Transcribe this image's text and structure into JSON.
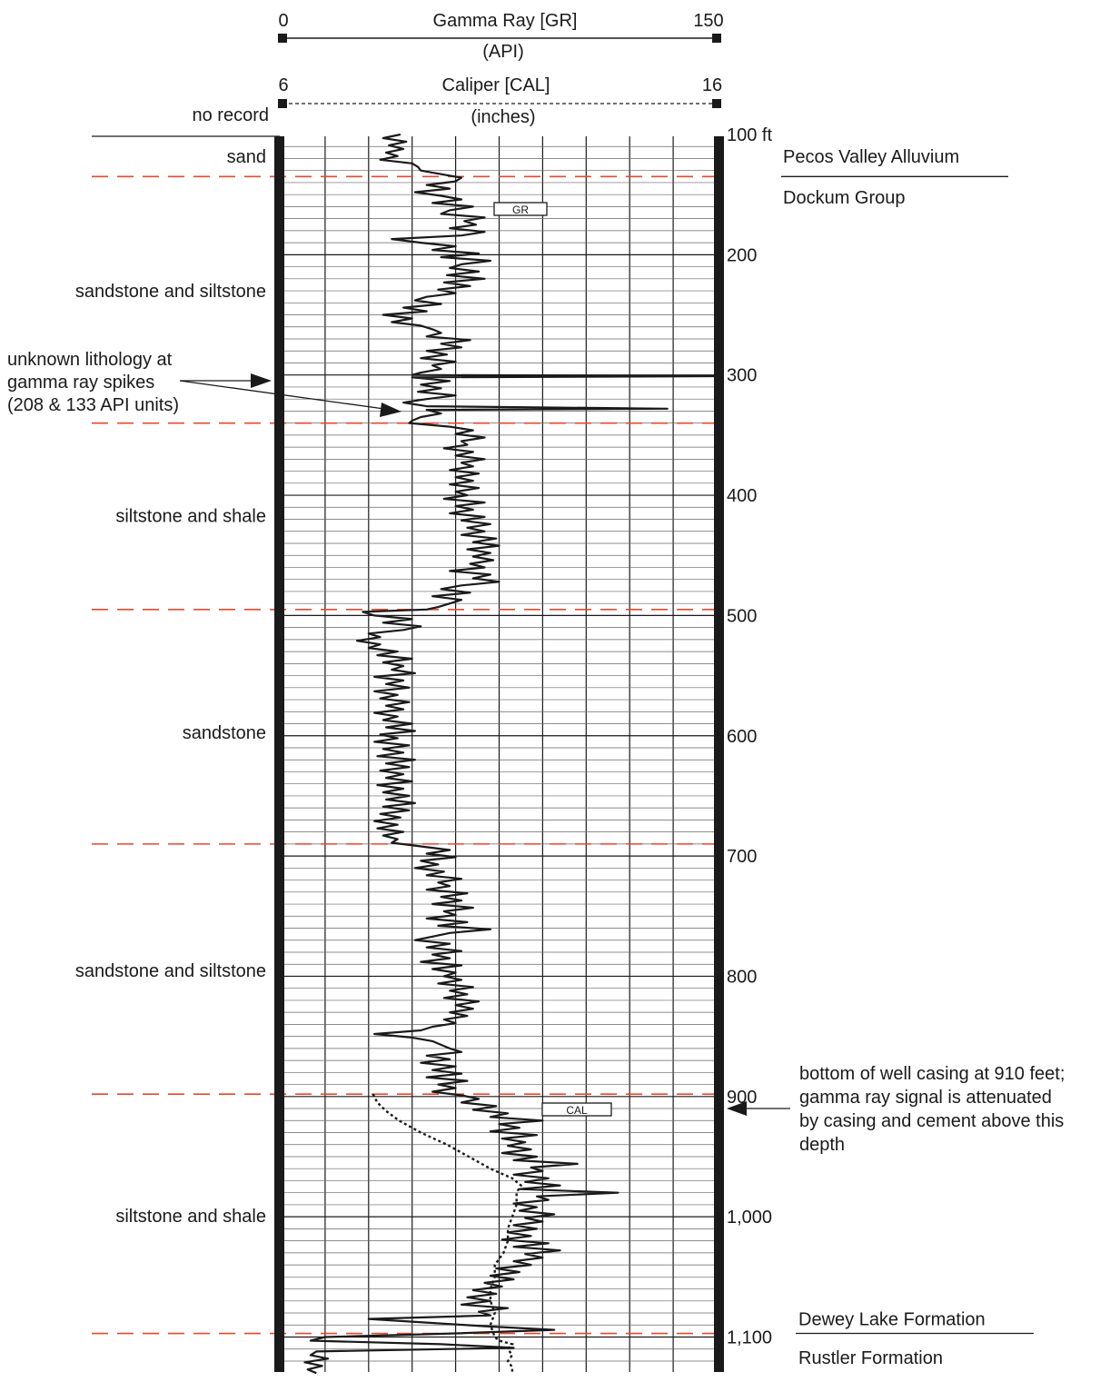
{
  "chart_data": {
    "type": "line",
    "header": {
      "gr": {
        "title": "Gamma Ray [GR]",
        "unit": "(API)",
        "min_label": "0",
        "max_label": "150",
        "min": 0,
        "max": 150
      },
      "cal": {
        "title": "Caliper [CAL]",
        "unit": "(inches)",
        "min_label": "6",
        "max_label": "16",
        "min": 6,
        "max": 16
      },
      "no_record": "no record"
    },
    "depth_axis": {
      "min": 100,
      "max": 1130,
      "ticks": [
        {
          "depth": 100,
          "label": "100 ft"
        },
        {
          "depth": 200,
          "label": "200"
        },
        {
          "depth": 300,
          "label": "300"
        },
        {
          "depth": 400,
          "label": "400"
        },
        {
          "depth": 500,
          "label": "500"
        },
        {
          "depth": 600,
          "label": "600"
        },
        {
          "depth": 700,
          "label": "700"
        },
        {
          "depth": 800,
          "label": "800"
        },
        {
          "depth": 900,
          "label": "900"
        },
        {
          "depth": 1000,
          "label": "1,000"
        },
        {
          "depth": 1100,
          "label": "1,100"
        }
      ]
    },
    "lithology": [
      {
        "label": "sand",
        "depth": 118
      },
      {
        "label": "sandstone and siltstone",
        "depth": 230
      },
      {
        "label": "siltstone and shale",
        "depth": 417
      },
      {
        "label": "sandstone",
        "depth": 597
      },
      {
        "label": "sandstone and siltstone",
        "depth": 795
      },
      {
        "label": "siltstone and shale",
        "depth": 999
      }
    ],
    "boundaries": [
      135,
      340,
      495,
      690,
      898,
      1097
    ],
    "formations": [
      {
        "label": "Pecos Valley Alluvium",
        "depth": 118
      },
      {
        "label": "Dockum Group",
        "depth": 152
      },
      {
        "label": "Dewey Lake Formation",
        "depth": 1085
      },
      {
        "label": "Rustler Formation",
        "depth": 1117
      }
    ],
    "formation_dividers": [
      {
        "depth": 135,
        "x_from": 860,
        "x_to": 1110
      },
      {
        "depth": 1097,
        "x_from": 876,
        "x_to": 1138
      }
    ],
    "curve_labels": {
      "gr": "GR",
      "cal": "CAL"
    },
    "annotations": {
      "spikes": {
        "lines": [
          "unknown lithology at",
          "gamma ray spikes",
          "(208 & 133 API units)"
        ]
      },
      "casing": {
        "lines": [
          "bottom of well casing at 910 feet;",
          "gamma ray signal is attenuated",
          "by casing and cement above this",
          "depth"
        ],
        "depth": 910
      }
    },
    "gr_series": [
      [
        100,
        41
      ],
      [
        103,
        35
      ],
      [
        106,
        43
      ],
      [
        109,
        37
      ],
      [
        112,
        42
      ],
      [
        115,
        36
      ],
      [
        118,
        40
      ],
      [
        121,
        34
      ],
      [
        124,
        45
      ],
      [
        127,
        47
      ],
      [
        130,
        48
      ],
      [
        133,
        55
      ],
      [
        136,
        62
      ],
      [
        139,
        60
      ],
      [
        142,
        50
      ],
      [
        145,
        58
      ],
      [
        148,
        46
      ],
      [
        151,
        55
      ],
      [
        154,
        62
      ],
      [
        157,
        52
      ],
      [
        160,
        66
      ],
      [
        163,
        58
      ],
      [
        166,
        55
      ],
      [
        169,
        70
      ],
      [
        172,
        63
      ],
      [
        175,
        67
      ],
      [
        178,
        58
      ],
      [
        181,
        70
      ],
      [
        184,
        62
      ],
      [
        187,
        38
      ],
      [
        190,
        48
      ],
      [
        193,
        60
      ],
      [
        196,
        52
      ],
      [
        199,
        68
      ],
      [
        202,
        55
      ],
      [
        205,
        72
      ],
      [
        208,
        62
      ],
      [
        211,
        58
      ],
      [
        214,
        68
      ],
      [
        217,
        57
      ],
      [
        220,
        70
      ],
      [
        223,
        56
      ],
      [
        226,
        65
      ],
      [
        229,
        54
      ],
      [
        232,
        60
      ],
      [
        235,
        50
      ],
      [
        238,
        46
      ],
      [
        241,
        55
      ],
      [
        244,
        42
      ],
      [
        247,
        50
      ],
      [
        250,
        35
      ],
      [
        253,
        45
      ],
      [
        256,
        38
      ],
      [
        259,
        48
      ],
      [
        262,
        52
      ],
      [
        265,
        55
      ],
      [
        268,
        50
      ],
      [
        271,
        65
      ],
      [
        274,
        55
      ],
      [
        277,
        62
      ],
      [
        280,
        50
      ],
      [
        283,
        57
      ],
      [
        286,
        48
      ],
      [
        289,
        60
      ],
      [
        292,
        52
      ],
      [
        295,
        55
      ],
      [
        298,
        48
      ],
      [
        300,
        45
      ],
      [
        301,
        150
      ],
      [
        302,
        45
      ],
      [
        305,
        58
      ],
      [
        308,
        48
      ],
      [
        311,
        55
      ],
      [
        314,
        47
      ],
      [
        317,
        60
      ],
      [
        320,
        50
      ],
      [
        323,
        42
      ],
      [
        326,
        50
      ],
      [
        328,
        133
      ],
      [
        329,
        50
      ],
      [
        332,
        55
      ],
      [
        335,
        48
      ],
      [
        338,
        45
      ],
      [
        340,
        44
      ],
      [
        343,
        58
      ],
      [
        346,
        66
      ],
      [
        349,
        60
      ],
      [
        352,
        70
      ],
      [
        355,
        62
      ],
      [
        358,
        64
      ],
      [
        361,
        56
      ],
      [
        364,
        66
      ],
      [
        367,
        60
      ],
      [
        370,
        70
      ],
      [
        373,
        62
      ],
      [
        376,
        66
      ],
      [
        379,
        58
      ],
      [
        382,
        68
      ],
      [
        385,
        60
      ],
      [
        388,
        66
      ],
      [
        391,
        58
      ],
      [
        394,
        68
      ],
      [
        397,
        60
      ],
      [
        400,
        64
      ],
      [
        403,
        56
      ],
      [
        406,
        70
      ],
      [
        409,
        60
      ],
      [
        412,
        66
      ],
      [
        415,
        58
      ],
      [
        418,
        70
      ],
      [
        421,
        62
      ],
      [
        424,
        72
      ],
      [
        427,
        64
      ],
      [
        430,
        70
      ],
      [
        433,
        62
      ],
      [
        436,
        74
      ],
      [
        439,
        66
      ],
      [
        442,
        75
      ],
      [
        445,
        64
      ],
      [
        448,
        72
      ],
      [
        451,
        66
      ],
      [
        454,
        73
      ],
      [
        457,
        65
      ],
      [
        460,
        70
      ],
      [
        463,
        58
      ],
      [
        466,
        72
      ],
      [
        469,
        66
      ],
      [
        472,
        75
      ],
      [
        475,
        62
      ],
      [
        478,
        55
      ],
      [
        481,
        65
      ],
      [
        484,
        52
      ],
      [
        487,
        62
      ],
      [
        490,
        58
      ],
      [
        493,
        54
      ],
      [
        495,
        50
      ],
      [
        497,
        28
      ],
      [
        500,
        32
      ],
      [
        503,
        45
      ],
      [
        506,
        35
      ],
      [
        509,
        48
      ],
      [
        512,
        42
      ],
      [
        515,
        30
      ],
      [
        518,
        34
      ],
      [
        521,
        26
      ],
      [
        524,
        34
      ],
      [
        527,
        30
      ],
      [
        530,
        40
      ],
      [
        533,
        33
      ],
      [
        536,
        45
      ],
      [
        539,
        35
      ],
      [
        542,
        42
      ],
      [
        545,
        38
      ],
      [
        548,
        46
      ],
      [
        551,
        32
      ],
      [
        554,
        42
      ],
      [
        557,
        36
      ],
      [
        560,
        44
      ],
      [
        563,
        32
      ],
      [
        566,
        40
      ],
      [
        569,
        34
      ],
      [
        572,
        44
      ],
      [
        575,
        36
      ],
      [
        578,
        42
      ],
      [
        581,
        32
      ],
      [
        584,
        40
      ],
      [
        587,
        35
      ],
      [
        590,
        45
      ],
      [
        593,
        36
      ],
      [
        596,
        46
      ],
      [
        599,
        34
      ],
      [
        602,
        40
      ],
      [
        605,
        32
      ],
      [
        608,
        44
      ],
      [
        611,
        35
      ],
      [
        614,
        42
      ],
      [
        617,
        33
      ],
      [
        620,
        46
      ],
      [
        623,
        36
      ],
      [
        626,
        44
      ],
      [
        629,
        34
      ],
      [
        632,
        42
      ],
      [
        635,
        36
      ],
      [
        638,
        45
      ],
      [
        641,
        33
      ],
      [
        644,
        42
      ],
      [
        647,
        35
      ],
      [
        650,
        44
      ],
      [
        653,
        36
      ],
      [
        656,
        46
      ],
      [
        659,
        35
      ],
      [
        662,
        44
      ],
      [
        665,
        34
      ],
      [
        668,
        41
      ],
      [
        671,
        32
      ],
      [
        674,
        40
      ],
      [
        677,
        33
      ],
      [
        680,
        42
      ],
      [
        683,
        35
      ],
      [
        686,
        40
      ],
      [
        689,
        38
      ],
      [
        692,
        48
      ],
      [
        695,
        58
      ],
      [
        698,
        50
      ],
      [
        701,
        60
      ],
      [
        704,
        48
      ],
      [
        707,
        54
      ],
      [
        710,
        46
      ],
      [
        713,
        56
      ],
      [
        716,
        50
      ],
      [
        719,
        62
      ],
      [
        722,
        54
      ],
      [
        725,
        58
      ],
      [
        728,
        50
      ],
      [
        731,
        64
      ],
      [
        734,
        55
      ],
      [
        737,
        62
      ],
      [
        740,
        52
      ],
      [
        743,
        66
      ],
      [
        746,
        56
      ],
      [
        749,
        60
      ],
      [
        752,
        50
      ],
      [
        755,
        64
      ],
      [
        758,
        54
      ],
      [
        761,
        72
      ],
      [
        764,
        58
      ],
      [
        767,
        52
      ],
      [
        770,
        46
      ],
      [
        773,
        58
      ],
      [
        776,
        50
      ],
      [
        779,
        62
      ],
      [
        782,
        52
      ],
      [
        785,
        58
      ],
      [
        788,
        48
      ],
      [
        791,
        62
      ],
      [
        794,
        52
      ],
      [
        797,
        60
      ],
      [
        800,
        56
      ],
      [
        803,
        62
      ],
      [
        806,
        54
      ],
      [
        809,
        66
      ],
      [
        812,
        58
      ],
      [
        815,
        64
      ],
      [
        818,
        56
      ],
      [
        821,
        68
      ],
      [
        824,
        60
      ],
      [
        827,
        66
      ],
      [
        830,
        58
      ],
      [
        833,
        64
      ],
      [
        836,
        56
      ],
      [
        839,
        60
      ],
      [
        842,
        52
      ],
      [
        845,
        48
      ],
      [
        848,
        32
      ],
      [
        851,
        45
      ],
      [
        854,
        52
      ],
      [
        857,
        55
      ],
      [
        860,
        58
      ],
      [
        863,
        62
      ],
      [
        866,
        50
      ],
      [
        869,
        58
      ],
      [
        872,
        48
      ],
      [
        875,
        60
      ],
      [
        878,
        52
      ],
      [
        881,
        62
      ],
      [
        884,
        50
      ],
      [
        887,
        64
      ],
      [
        890,
        54
      ],
      [
        893,
        60
      ],
      [
        896,
        52
      ],
      [
        899,
        62
      ],
      [
        902,
        68
      ],
      [
        905,
        62
      ],
      [
        908,
        74
      ],
      [
        911,
        66
      ],
      [
        914,
        78
      ],
      [
        917,
        72
      ],
      [
        920,
        90
      ],
      [
        923,
        75
      ],
      [
        926,
        82
      ],
      [
        929,
        72
      ],
      [
        932,
        88
      ],
      [
        935,
        76
      ],
      [
        938,
        84
      ],
      [
        941,
        78
      ],
      [
        944,
        86
      ],
      [
        947,
        76
      ],
      [
        950,
        88
      ],
      [
        953,
        80
      ],
      [
        956,
        102
      ],
      [
        959,
        86
      ],
      [
        962,
        90
      ],
      [
        965,
        80
      ],
      [
        968,
        92
      ],
      [
        971,
        84
      ],
      [
        974,
        96
      ],
      [
        977,
        82
      ],
      [
        980,
        116
      ],
      [
        983,
        88
      ],
      [
        986,
        92
      ],
      [
        989,
        80
      ],
      [
        992,
        88
      ],
      [
        995,
        82
      ],
      [
        998,
        94
      ],
      [
        1001,
        84
      ],
      [
        1004,
        90
      ],
      [
        1007,
        80
      ],
      [
        1010,
        88
      ],
      [
        1013,
        78
      ],
      [
        1016,
        86
      ],
      [
        1019,
        76
      ],
      [
        1022,
        92
      ],
      [
        1025,
        80
      ],
      [
        1028,
        96
      ],
      [
        1031,
        84
      ],
      [
        1034,
        90
      ],
      [
        1037,
        80
      ],
      [
        1040,
        86
      ],
      [
        1043,
        74
      ],
      [
        1046,
        82
      ],
      [
        1049,
        72
      ],
      [
        1052,
        80
      ],
      [
        1055,
        70
      ],
      [
        1058,
        76
      ],
      [
        1061,
        66
      ],
      [
        1064,
        74
      ],
      [
        1067,
        64
      ],
      [
        1070,
        72
      ],
      [
        1073,
        62
      ],
      [
        1076,
        78
      ],
      [
        1079,
        68
      ],
      [
        1082,
        72
      ],
      [
        1085,
        30
      ],
      [
        1088,
        50
      ],
      [
        1091,
        70
      ],
      [
        1094,
        94
      ],
      [
        1097,
        60
      ],
      [
        1100,
        15
      ],
      [
        1103,
        10
      ],
      [
        1106,
        55
      ],
      [
        1109,
        80
      ],
      [
        1112,
        12
      ],
      [
        1115,
        10
      ],
      [
        1118,
        16
      ],
      [
        1121,
        8
      ],
      [
        1124,
        14
      ],
      [
        1127,
        9
      ],
      [
        1130,
        12
      ]
    ],
    "cal_series": [
      [
        898,
        8.1
      ],
      [
        905,
        8.2
      ],
      [
        912,
        8.4
      ],
      [
        920,
        8.7
      ],
      [
        930,
        9.2
      ],
      [
        940,
        9.8
      ],
      [
        950,
        10.3
      ],
      [
        960,
        10.8
      ],
      [
        968,
        11.3
      ],
      [
        974,
        11.5
      ],
      [
        980,
        11.4
      ],
      [
        990,
        11.4
      ],
      [
        1000,
        11.3
      ],
      [
        1010,
        11.2
      ],
      [
        1020,
        11.2
      ],
      [
        1030,
        11.1
      ],
      [
        1040,
        10.9
      ],
      [
        1050,
        10.9
      ],
      [
        1060,
        10.8
      ],
      [
        1070,
        10.8
      ],
      [
        1080,
        10.9
      ],
      [
        1090,
        10.8
      ],
      [
        1100,
        10.9
      ],
      [
        1103,
        11.0
      ],
      [
        1106,
        11.3
      ],
      [
        1110,
        11.2
      ],
      [
        1115,
        11.3
      ],
      [
        1120,
        11.2
      ],
      [
        1125,
        11.3
      ],
      [
        1130,
        11.3
      ]
    ]
  }
}
